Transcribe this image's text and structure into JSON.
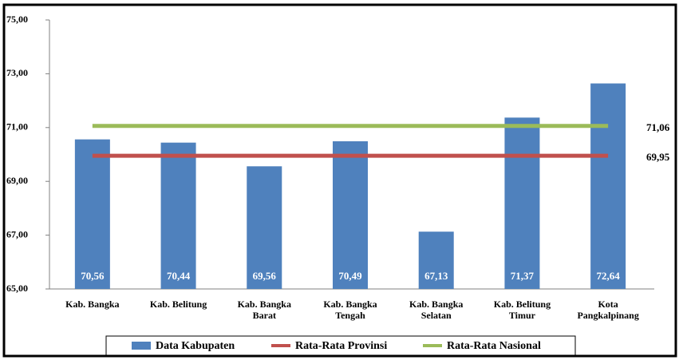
{
  "chart_data": {
    "type": "bar",
    "categories": [
      "Kab. Bangka",
      "Kab. Belitung",
      "Kab. Bangka\nBarat",
      "Kab. Bangka\nTengah",
      "Kab. Bangka\nSelatan",
      "Kab. Belitung\nTimur",
      "Kota\nPangkalpinang"
    ],
    "series": [
      {
        "name": "Data Kabupaten",
        "type": "bar",
        "color": "#4f81bd",
        "values": [
          70.56,
          70.44,
          69.56,
          70.49,
          67.13,
          71.37,
          72.64
        ],
        "value_labels": [
          "70,56",
          "70,44",
          "69,56",
          "70,49",
          "67,13",
          "71,37",
          "72,64"
        ]
      },
      {
        "name": "Rata-Rata Provinsi",
        "type": "line",
        "color": "#c0504d",
        "values": [
          69.95,
          69.95,
          69.95,
          69.95,
          69.95,
          69.95,
          69.95
        ],
        "end_label": "69,95"
      },
      {
        "name": "Rata-Rata Nasional",
        "type": "line",
        "color": "#9bbb59",
        "values": [
          71.06,
          71.06,
          71.06,
          71.06,
          71.06,
          71.06,
          71.06
        ],
        "end_label": "71,06"
      }
    ],
    "ylim": [
      65,
      75
    ],
    "yticks": [
      {
        "value": 65,
        "label": "65,00"
      },
      {
        "value": 67,
        "label": "67,00"
      },
      {
        "value": 69,
        "label": "69,00"
      },
      {
        "value": 71,
        "label": "71,00"
      },
      {
        "value": 73,
        "label": "73,00"
      },
      {
        "value": 75,
        "label": "75,00"
      }
    ],
    "legend": "bottom"
  }
}
